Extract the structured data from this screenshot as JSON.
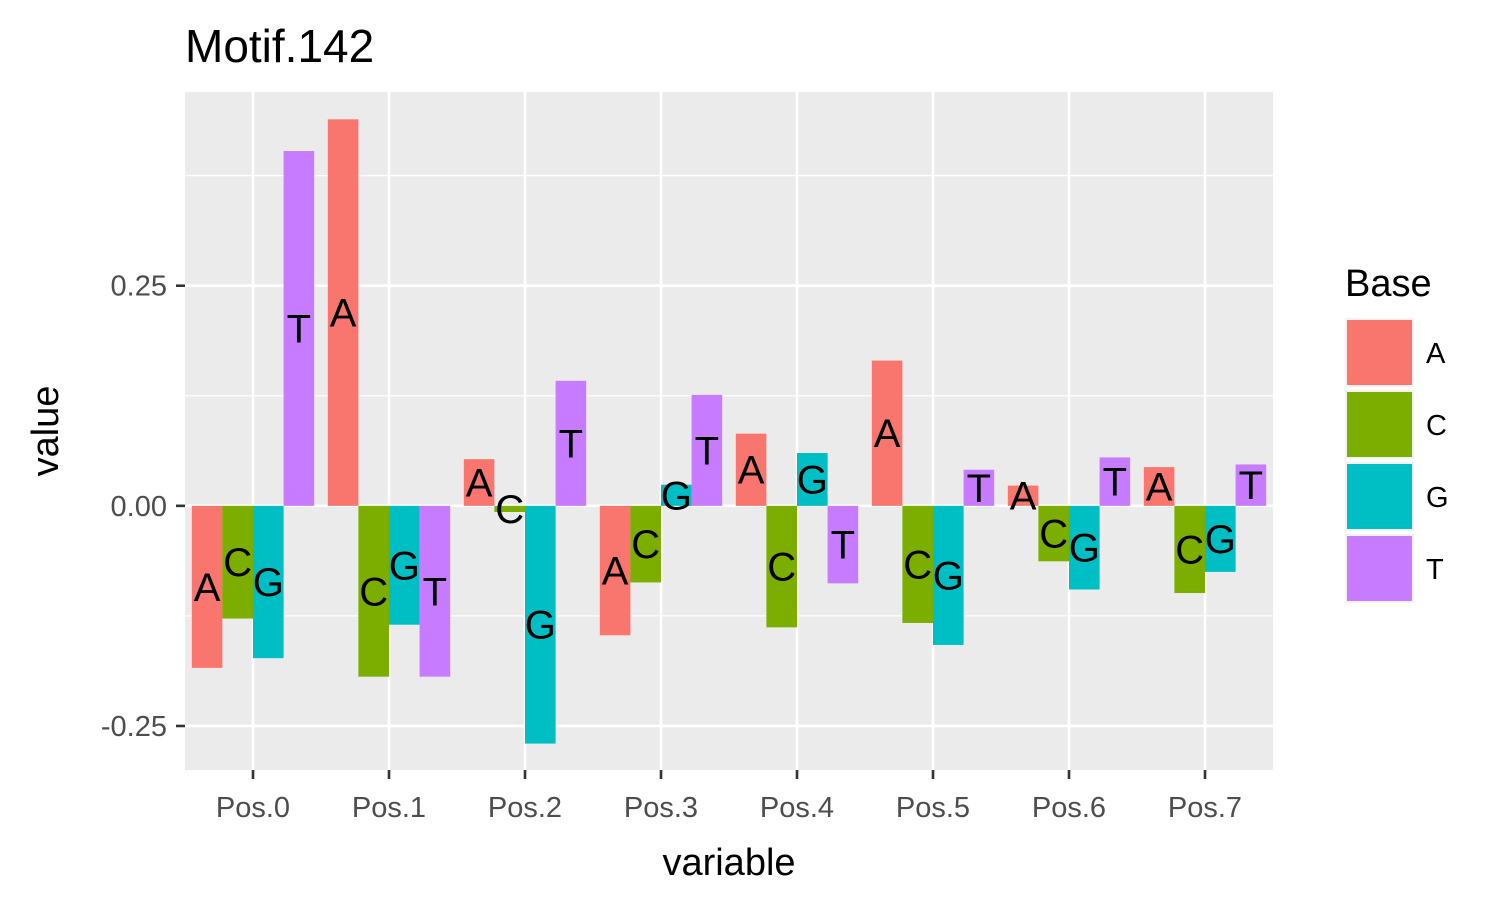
{
  "chart_data": {
    "type": "bar",
    "title": "Motif.142",
    "xlabel": "variable",
    "ylabel": "value",
    "categories": [
      "Pos.0",
      "Pos.1",
      "Pos.2",
      "Pos.3",
      "Pos.4",
      "Pos.5",
      "Pos.6",
      "Pos.7"
    ],
    "series": [
      {
        "name": "A",
        "color": "#F8766D",
        "values": [
          -0.184,
          0.439,
          0.053,
          -0.147,
          0.082,
          0.165,
          0.023,
          0.044
        ]
      },
      {
        "name": "C",
        "color": "#7CAE00",
        "values": [
          -0.128,
          -0.194,
          -0.007,
          -0.087,
          -0.138,
          -0.133,
          -0.063,
          -0.099
        ]
      },
      {
        "name": "G",
        "color": "#00BFC4",
        "values": [
          -0.173,
          -0.135,
          -0.27,
          0.024,
          0.06,
          -0.158,
          -0.095,
          -0.075
        ]
      },
      {
        "name": "T",
        "color": "#C77CFF",
        "values": [
          0.403,
          -0.194,
          0.142,
          0.126,
          -0.088,
          0.041,
          0.055,
          0.047
        ]
      }
    ],
    "ylim": [
      -0.3,
      0.47
    ],
    "yticks": [
      -0.25,
      0.0,
      0.25
    ],
    "ytick_labels": [
      "-0.25",
      "0.00",
      "0.25"
    ],
    "grid": true,
    "legend": {
      "title": "Base",
      "position": "right"
    }
  }
}
